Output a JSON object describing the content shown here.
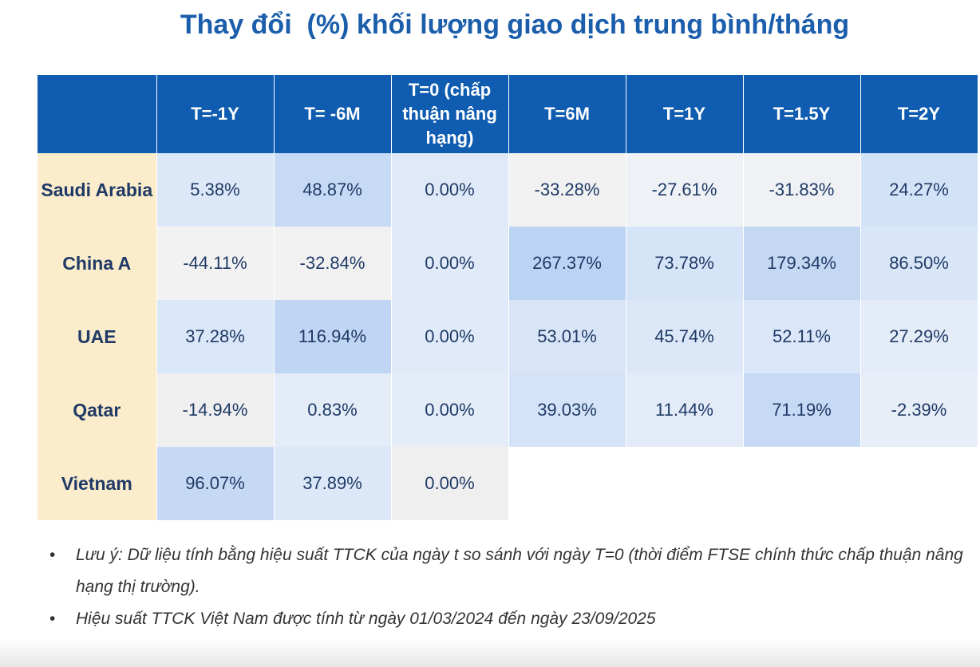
{
  "title": "Thay đổi  (%) khối lượng giao dịch trung bình/tháng",
  "table": {
    "header": [
      "T=-1Y",
      "T= -6M",
      "T=0 (chấp thuận nâng hạng)",
      "T=6M",
      "T=1Y",
      "T=1.5Y",
      "T=2Y"
    ],
    "rows": [
      {
        "label": "Saudi Arabia",
        "cells": [
          "5.38%",
          "48.87%",
          "0.00%",
          "-33.28%",
          "-27.61%",
          "-31.83%",
          "24.27%"
        ]
      },
      {
        "label": "China A",
        "cells": [
          "-44.11%",
          "-32.84%",
          "0.00%",
          "267.37%",
          "73.78%",
          "179.34%",
          "86.50%"
        ]
      },
      {
        "label": "UAE",
        "cells": [
          "37.28%",
          "116.94%",
          "0.00%",
          "53.01%",
          "45.74%",
          "52.11%",
          "27.29%"
        ]
      },
      {
        "label": "Qatar",
        "cells": [
          "-14.94%",
          "0.83%",
          "0.00%",
          "39.03%",
          "11.44%",
          "71.19%",
          "-2.39%"
        ]
      },
      {
        "label": "Vietnam",
        "cells": [
          "96.07%",
          "37.89%",
          "0.00%"
        ]
      }
    ]
  },
  "notes": [
    "Lưu ý: Dữ liệu tính bằng hiệu suất TTCK của ngày t so sánh với ngày T=0 (thời điểm FTSE chính thức chấp thuận nâng hạng thị trường).",
    "Hiệu suất TTCK Việt Nam được tính từ ngày 01/03/2024 đến ngày 23/09/2025"
  ]
}
